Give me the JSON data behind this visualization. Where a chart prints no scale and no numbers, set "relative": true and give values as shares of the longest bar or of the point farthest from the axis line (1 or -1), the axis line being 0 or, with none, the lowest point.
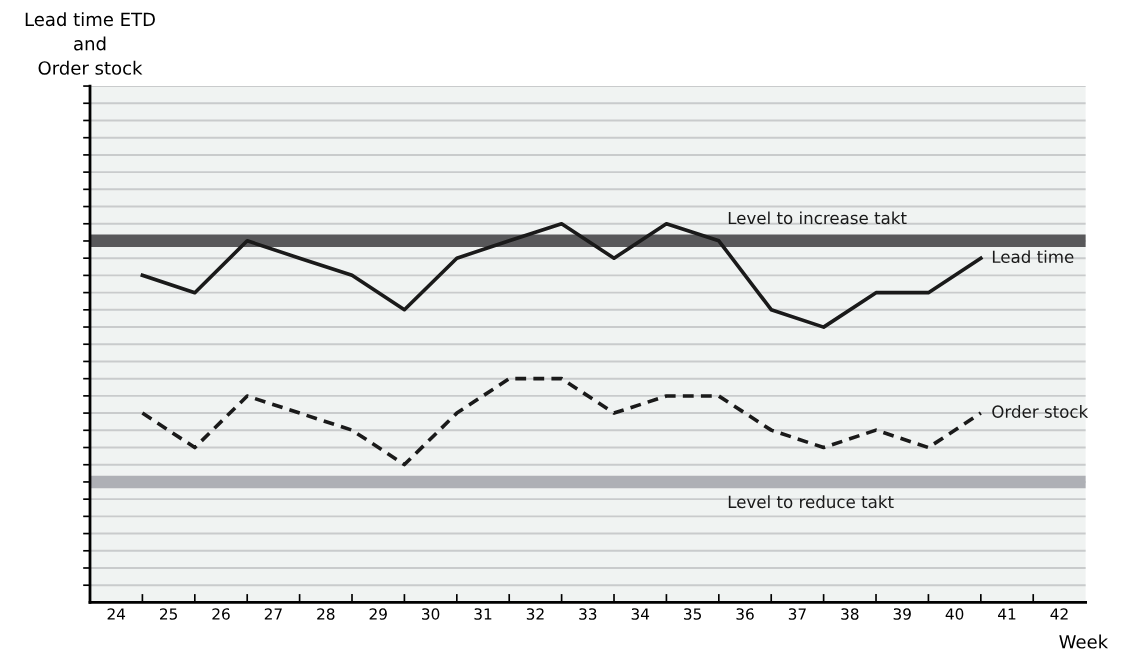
{
  "chart_data": {
    "type": "line",
    "relative": true,
    "annotations": [
      "Lead time ETD\nand\nOrder stock"
    ],
    "xlabel": "Week",
    "x": [
      24.5,
      25.5,
      26.5,
      27.5,
      28.5,
      29.5,
      30.5,
      31.5,
      32.5,
      33.5,
      34.5,
      35.5,
      36.5,
      37.5,
      38.5,
      39.5,
      40.5
    ],
    "xlim": [
      23.5,
      42.5
    ],
    "xticks": [
      {
        "value": 24,
        "label": "24"
      },
      {
        "value": 25,
        "label": "25"
      },
      {
        "value": 26,
        "label": "26"
      },
      {
        "value": 27,
        "label": "27"
      },
      {
        "value": 28,
        "label": "28"
      },
      {
        "value": 29,
        "label": "29"
      },
      {
        "value": 30,
        "label": "30"
      },
      {
        "value": 31,
        "label": "31"
      },
      {
        "value": 32,
        "label": "32"
      },
      {
        "value": 33,
        "label": "33"
      },
      {
        "value": 34,
        "label": "34"
      },
      {
        "value": 35,
        "label": "35"
      },
      {
        "value": 36,
        "label": "36"
      },
      {
        "value": 37,
        "label": "37"
      },
      {
        "value": 38,
        "label": "38"
      },
      {
        "value": 39,
        "label": "39"
      },
      {
        "value": 40,
        "label": "40"
      },
      {
        "value": 41,
        "label": "41"
      },
      {
        "value": 42,
        "label": "42"
      },
      {
        "value": 24.5,
        "label": null
      },
      {
        "value": 25.5,
        "label": null
      },
      {
        "value": 26.5,
        "label": null
      },
      {
        "value": 27.5,
        "label": null
      },
      {
        "value": 28.5,
        "label": null
      },
      {
        "value": 29.5,
        "label": null
      },
      {
        "value": 30.5,
        "label": null
      },
      {
        "value": 31.5,
        "label": null
      },
      {
        "value": 32.5,
        "label": null
      },
      {
        "value": 33.5,
        "label": null
      },
      {
        "value": 34.5,
        "label": null
      },
      {
        "value": 35.5,
        "label": null
      },
      {
        "value": 36.5,
        "label": null
      },
      {
        "value": 37.5,
        "label": null
      },
      {
        "value": 38.5,
        "label": null
      },
      {
        "value": 39.5,
        "label": null
      },
      {
        "value": 40.5,
        "label": null
      },
      {
        "value": 41.5,
        "label": null
      }
    ],
    "series": [
      {
        "name": "Lead time",
        "color": "#1a1a1a",
        "line_style": "solid",
        "values": [
          0.864,
          0.818,
          0.955,
          0.909,
          0.864,
          0.773,
          0.909,
          0.955,
          1.0,
          0.909,
          1.0,
          0.955,
          0.773,
          0.727,
          0.818,
          0.818,
          0.909
        ]
      },
      {
        "name": "Order stock",
        "color": "#1a1a1a",
        "line_style": "dashed",
        "values": [
          0.5,
          0.409,
          0.545,
          0.5,
          0.455,
          0.364,
          0.5,
          0.591,
          0.591,
          0.5,
          0.545,
          0.545,
          0.455,
          0.409,
          0.455,
          0.409,
          0.5
        ]
      }
    ],
    "ref_lines": [
      {
        "axis": "y",
        "value": 0.955,
        "label": "Level to increase takt",
        "color": "#58585a"
      },
      {
        "axis": "y",
        "value": 0.318,
        "label": "Level to reduce takt",
        "color": "#aeb0b5"
      }
    ],
    "grid": "y",
    "legend": false,
    "marker": "none"
  }
}
